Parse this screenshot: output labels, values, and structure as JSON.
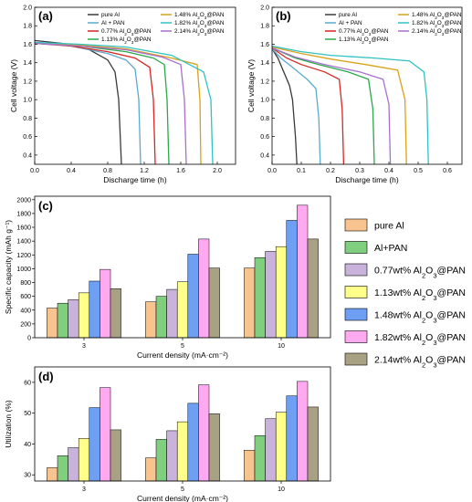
{
  "panels": {
    "a": "(a)",
    "b": "(b)",
    "c": "(c)",
    "d": "(d)"
  },
  "bar_legend": [
    {
      "text": "pure Al",
      "color": "#f7c48f"
    },
    {
      "text": "Al+PAN",
      "color": "#7fcf7f"
    },
    {
      "text": "0.77wt% Al2O3@PAN",
      "color": "#c9b3dd"
    },
    {
      "text": "1.13wt% Al2O3@PAN",
      "color": "#ffff8a"
    },
    {
      "text": "1.48wt% Al2O3@PAN",
      "color": "#6f9ff2"
    },
    {
      "text": "1.82wt% Al2O3@PAN",
      "color": "#ffaaf0"
    },
    {
      "text": "2.14wt% Al2O3@PAN",
      "color": "#a8a184"
    }
  ],
  "chart_data": [
    {
      "type": "line",
      "panel": "(a)",
      "xlabel": "Discharge time (h)",
      "ylabel": "Cell voltage (V)",
      "xlim": [
        0,
        2.2
      ],
      "ylim": [
        0.3,
        2.0
      ],
      "xticks": [
        0.0,
        0.4,
        0.8,
        1.2,
        1.6,
        2.0
      ],
      "yticks": [
        0.4,
        0.6,
        0.8,
        1.0,
        1.2,
        1.4,
        1.6,
        1.8,
        2.0
      ],
      "legend_position": "top",
      "series": [
        {
          "name": "pure Al",
          "color": "#3a3a3a",
          "points": [
            [
              0,
              1.64
            ],
            [
              0.3,
              1.61
            ],
            [
              0.6,
              1.54
            ],
            [
              0.8,
              1.43
            ],
            [
              0.88,
              1.3
            ],
            [
              0.92,
              1.0
            ],
            [
              0.95,
              0.3
            ]
          ]
        },
        {
          "name": "Al + PAN",
          "color": "#5aa9cf",
          "points": [
            [
              0,
              1.62
            ],
            [
              0.4,
              1.58
            ],
            [
              0.8,
              1.5
            ],
            [
              1.0,
              1.43
            ],
            [
              1.1,
              1.33
            ],
            [
              1.14,
              1.0
            ],
            [
              1.16,
              0.3
            ]
          ]
        },
        {
          "name": "0.77% Al2O3@PAN",
          "color": "#d62626",
          "points": [
            [
              0,
              1.61
            ],
            [
              0.4,
              1.58
            ],
            [
              0.8,
              1.52
            ],
            [
              1.1,
              1.45
            ],
            [
              1.26,
              1.35
            ],
            [
              1.3,
              1.0
            ],
            [
              1.32,
              0.3
            ]
          ]
        },
        {
          "name": "1.13% Al2O3@PAN",
          "color": "#2aa84a",
          "points": [
            [
              0,
              1.61
            ],
            [
              0.5,
              1.58
            ],
            [
              1.0,
              1.52
            ],
            [
              1.3,
              1.45
            ],
            [
              1.42,
              1.38
            ],
            [
              1.45,
              1.0
            ],
            [
              1.47,
              0.3
            ]
          ]
        },
        {
          "name": "1.48% Al2O3@PAN",
          "color": "#d8a21a",
          "points": [
            [
              0,
              1.61
            ],
            [
              0.5,
              1.59
            ],
            [
              1.0,
              1.55
            ],
            [
              1.5,
              1.45
            ],
            [
              1.78,
              1.38
            ],
            [
              1.81,
              1.0
            ],
            [
              1.82,
              0.3
            ]
          ]
        },
        {
          "name": "1.82% Al2O3@PAN",
          "color": "#2fc2c2",
          "points": [
            [
              0,
              1.62
            ],
            [
              0.5,
              1.6
            ],
            [
              1.0,
              1.57
            ],
            [
              1.5,
              1.48
            ],
            [
              1.85,
              1.3
            ],
            [
              1.93,
              1.0
            ],
            [
              1.95,
              0.3
            ]
          ]
        },
        {
          "name": "2.14% Al2O3@PAN",
          "color": "#a86fd0",
          "points": [
            [
              0,
              1.61
            ],
            [
              0.5,
              1.58
            ],
            [
              1.0,
              1.54
            ],
            [
              1.4,
              1.46
            ],
            [
              1.6,
              1.38
            ],
            [
              1.64,
              1.0
            ],
            [
              1.66,
              0.3
            ]
          ]
        }
      ]
    },
    {
      "type": "line",
      "panel": "(b)",
      "xlabel": "Discharge time (h)",
      "ylabel": "Cell voltage (V)",
      "xlim": [
        0,
        0.65
      ],
      "ylim": [
        0.3,
        2.0
      ],
      "xticks": [
        0.0,
        0.1,
        0.2,
        0.3,
        0.4,
        0.5,
        0.6
      ],
      "yticks": [
        0.4,
        0.6,
        0.8,
        1.0,
        1.2,
        1.4,
        1.6,
        1.8,
        2.0
      ],
      "legend_position": "top",
      "series": [
        {
          "name": "pure Al",
          "color": "#3a3a3a",
          "points": [
            [
              0,
              1.55
            ],
            [
              0.02,
              1.45
            ],
            [
              0.04,
              1.3
            ],
            [
              0.06,
              1.15
            ],
            [
              0.07,
              1.0
            ],
            [
              0.08,
              0.6
            ],
            [
              0.085,
              0.3
            ]
          ]
        },
        {
          "name": "Al + PAN",
          "color": "#5aa9cf",
          "points": [
            [
              0,
              1.55
            ],
            [
              0.03,
              1.45
            ],
            [
              0.07,
              1.35
            ],
            [
              0.12,
              1.22
            ],
            [
              0.15,
              1.12
            ],
            [
              0.16,
              0.8
            ],
            [
              0.165,
              0.3
            ]
          ]
        },
        {
          "name": "0.77% Al2O3@PAN",
          "color": "#d62626",
          "points": [
            [
              0,
              1.56
            ],
            [
              0.05,
              1.45
            ],
            [
              0.1,
              1.38
            ],
            [
              0.18,
              1.3
            ],
            [
              0.23,
              1.22
            ],
            [
              0.24,
              0.9
            ],
            [
              0.245,
              0.3
            ]
          ]
        },
        {
          "name": "1.13% Al2O3@PAN",
          "color": "#2aa84a",
          "points": [
            [
              0,
              1.56
            ],
            [
              0.08,
              1.45
            ],
            [
              0.16,
              1.38
            ],
            [
              0.26,
              1.3
            ],
            [
              0.33,
              1.22
            ],
            [
              0.345,
              0.9
            ],
            [
              0.35,
              0.3
            ]
          ]
        },
        {
          "name": "1.48% Al2O3@PAN",
          "color": "#d8a21a",
          "points": [
            [
              0,
              1.57
            ],
            [
              0.1,
              1.5
            ],
            [
              0.2,
              1.44
            ],
            [
              0.32,
              1.38
            ],
            [
              0.43,
              1.32
            ],
            [
              0.455,
              1.0
            ],
            [
              0.46,
              0.3
            ]
          ]
        },
        {
          "name": "1.82% Al2O3@PAN",
          "color": "#2fc2c2",
          "points": [
            [
              0,
              1.58
            ],
            [
              0.1,
              1.52
            ],
            [
              0.2,
              1.48
            ],
            [
              0.35,
              1.45
            ],
            [
              0.47,
              1.42
            ],
            [
              0.52,
              1.3
            ],
            [
              0.53,
              1.0
            ],
            [
              0.535,
              0.3
            ]
          ]
        },
        {
          "name": "2.14% Al2O3@PAN",
          "color": "#a86fd0",
          "points": [
            [
              0,
              1.56
            ],
            [
              0.08,
              1.46
            ],
            [
              0.18,
              1.38
            ],
            [
              0.3,
              1.3
            ],
            [
              0.38,
              1.22
            ],
            [
              0.4,
              0.95
            ],
            [
              0.405,
              0.3
            ]
          ]
        }
      ]
    },
    {
      "type": "bar",
      "panel": "(c)",
      "xlabel": "Current density (mA·cm⁻²)",
      "ylabel": "Specific capacity (mAh g⁻¹)",
      "categories": [
        "3",
        "5",
        "10"
      ],
      "ylim": [
        0,
        2050
      ],
      "yticks": [
        0,
        200,
        400,
        600,
        800,
        1000,
        1200,
        1400,
        1600,
        1800,
        2000
      ],
      "series": [
        {
          "name": "pure Al",
          "values": [
            430,
            520,
            1010
          ]
        },
        {
          "name": "Al+PAN",
          "values": [
            500,
            600,
            1160
          ]
        },
        {
          "name": "0.77wt% Al2O3@PAN",
          "values": [
            550,
            700,
            1250
          ]
        },
        {
          "name": "1.13wt% Al2O3@PAN",
          "values": [
            650,
            810,
            1320
          ]
        },
        {
          "name": "1.48wt% Al2O3@PAN",
          "values": [
            820,
            1210,
            1700
          ]
        },
        {
          "name": "1.82wt% Al2O3@PAN",
          "values": [
            990,
            1430,
            1920
          ]
        },
        {
          "name": "2.14wt% Al2O3@PAN",
          "values": [
            710,
            1010,
            1430
          ]
        }
      ]
    },
    {
      "type": "bar",
      "panel": "(d)",
      "xlabel": "Current density (mA·cm⁻²)",
      "ylabel": "Utilization (%)",
      "categories": [
        "3",
        "5",
        "10"
      ],
      "ylim": [
        28,
        65
      ],
      "yticks": [
        30,
        40,
        50,
        60
      ],
      "series": [
        {
          "name": "pure Al",
          "values": [
            32.3,
            35.5,
            38.0
          ]
        },
        {
          "name": "Al+PAN",
          "values": [
            36.2,
            41.5,
            42.7
          ]
        },
        {
          "name": "0.77wt% Al2O3@PAN",
          "values": [
            38.8,
            44.3,
            48.2
          ]
        },
        {
          "name": "1.13wt% Al2O3@PAN",
          "values": [
            41.8,
            47.2,
            50.3
          ]
        },
        {
          "name": "1.48wt% Al2O3@PAN",
          "values": [
            51.8,
            53.2,
            55.6
          ]
        },
        {
          "name": "1.82wt% Al2O3@PAN",
          "values": [
            58.3,
            59.2,
            60.3
          ]
        },
        {
          "name": "2.14wt% Al2O3@PAN",
          "values": [
            44.6,
            49.8,
            52.0
          ]
        }
      ]
    }
  ]
}
